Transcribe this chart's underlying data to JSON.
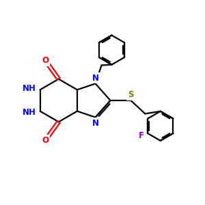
{
  "bg_color": "#ffffff",
  "bond_color": "#000000",
  "n_color": "#0000ff",
  "o_color": "#ff0000",
  "s_color": "#808000",
  "f_color": "#9400d3",
  "line_width": 1.6,
  "font_size": 8.5,
  "figsize": [
    3.0,
    3.0
  ],
  "dpi": 100,
  "xlim": [
    0,
    10
  ],
  "ylim": [
    0,
    10
  ]
}
